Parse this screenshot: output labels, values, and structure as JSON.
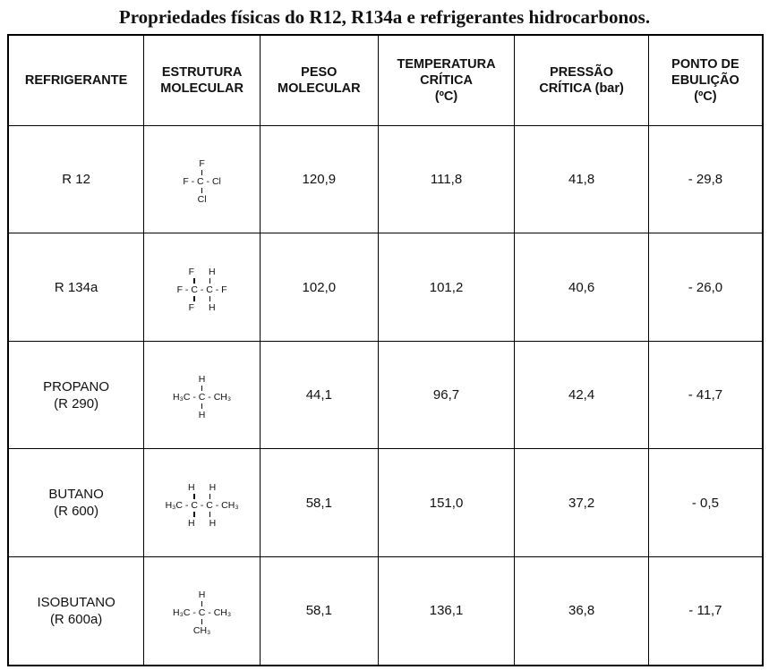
{
  "title": "Propriedades físicas do R12, R134a e refrigerantes hidrocarbonos.",
  "table": {
    "headers": [
      [
        "REFRIGERANTE"
      ],
      [
        "ESTRUTURA",
        "MOLECULAR"
      ],
      [
        "PESO",
        "MOLECULAR"
      ],
      [
        "TEMPERATURA",
        "CRÍTICA",
        "(ºC)"
      ],
      [
        "PRESSÃO",
        "CRÍTICA (bar)"
      ],
      [
        "PONTO DE",
        "EBULIÇÃO",
        "(ºC)"
      ]
    ],
    "rows": [
      {
        "name": [
          "R 12"
        ],
        "structure": {
          "top": [
            "F"
          ],
          "middle": "F - C - Cl",
          "bottom": [
            "Cl"
          ]
        },
        "values": [
          "120,9",
          "111,8",
          "41,8",
          "- 29,8"
        ]
      },
      {
        "name": [
          "R 134a"
        ],
        "structure": {
          "top": [
            "F",
            "H"
          ],
          "middle": "F - C - C - F",
          "bottom": [
            "F",
            "H"
          ]
        },
        "values": [
          "102,0",
          "101,2",
          "40,6",
          "- 26,0"
        ]
      },
      {
        "name": [
          "PROPANO",
          "(R 290)"
        ],
        "structure": {
          "top": [
            "H"
          ],
          "middle": "H₃C - C - CH₃",
          "bottom": [
            "H"
          ]
        },
        "values": [
          "44,1",
          "96,7",
          "42,4",
          "- 41,7"
        ]
      },
      {
        "name": [
          "BUTANO",
          "(R 600)"
        ],
        "structure": {
          "top": [
            "H",
            "H"
          ],
          "middle": "H₃C - C - C - CH₃",
          "bottom": [
            "H",
            "H"
          ]
        },
        "values": [
          "58,1",
          "151,0",
          "37,2",
          "- 0,5"
        ]
      },
      {
        "name": [
          "ISOBUTANO",
          "(R 600a)"
        ],
        "structure": {
          "top": [
            "H"
          ],
          "middle": "H₃C - C - CH₃",
          "bottom": [
            "CH₃"
          ]
        },
        "values": [
          "58,1",
          "136,1",
          "36,8",
          "- 11,7"
        ]
      }
    ]
  }
}
